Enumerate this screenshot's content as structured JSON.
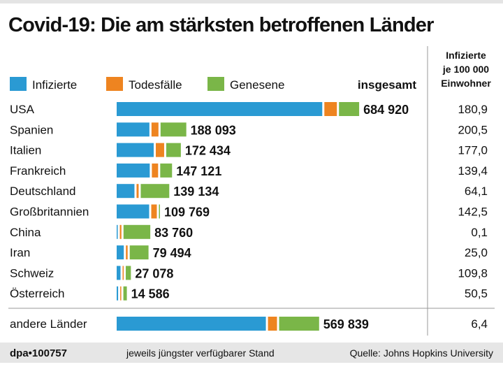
{
  "chart_data": {
    "type": "bar",
    "orientation": "horizontal",
    "stacked": true,
    "title": "Covid-19: Die am stärksten betroffenen Länder",
    "legend": {
      "placement": "top-left",
      "entries": [
        "Infizierte",
        "Todesfälle",
        "Genesene"
      ]
    },
    "colors": {
      "Infizierte": "#2a9ad3",
      "Todesfälle": "#ee8420",
      "Genesene": "#7ab648"
    },
    "total_header": "insgesamt",
    "per100k_header": [
      "Infizierte",
      "je 100 000",
      "Einwohner"
    ],
    "categories": [
      "USA",
      "Spanien",
      "Italien",
      "Frankreich",
      "Deutschland",
      "Großbritannien",
      "China",
      "Iran",
      "Schweiz",
      "Österreich",
      "andere Länder"
    ],
    "series": [
      {
        "name": "Infizierte",
        "values": [
          590920,
          94093,
          106434,
          95121,
          51134,
          93369,
          2160,
          20494,
          11078,
          4186,
          428839
        ]
      },
      {
        "name": "Todesfälle",
        "values": [
          36000,
          20000,
          24000,
          18000,
          6000,
          16000,
          4600,
          5000,
          1300,
          400,
          26000
        ]
      },
      {
        "name": "Genesene",
        "values": [
          58000,
          74000,
          42000,
          34000,
          82000,
          400,
          77000,
          54000,
          14700,
          10000,
          115000
        ]
      }
    ],
    "totals": [
      "684 920",
      "188 093",
      "172 434",
      "147 121",
      "139 134",
      "109 769",
      "83 760",
      "79 494",
      "27 078",
      "14 586",
      "569 839"
    ],
    "per100k": [
      "180,9",
      "200,5",
      "177,0",
      "139,4",
      "64,1",
      "142,5",
      "0,1",
      "25,0",
      "109,8",
      "50,5",
      "6,4"
    ],
    "grid": false
  },
  "footer": {
    "id": "dpa•100757",
    "note": "jeweils jüngster verfügbarer Stand",
    "source": "Quelle: Johns Hopkins University"
  }
}
